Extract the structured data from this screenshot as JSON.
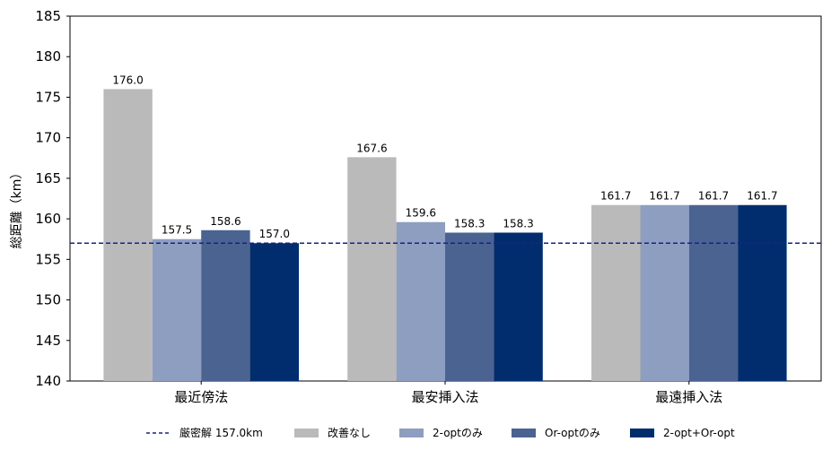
{
  "chart_data": {
    "type": "bar",
    "title": "",
    "xlabel": "",
    "ylabel": "総距離（km）",
    "ylim": [
      140,
      185
    ],
    "yticks": [
      140,
      145,
      150,
      155,
      160,
      165,
      170,
      175,
      180,
      185
    ],
    "grid": false,
    "legend_position": "bottom",
    "categories": [
      "最近傍法",
      "最安挿入法",
      "最遠挿入法"
    ],
    "series": [
      {
        "name": "改善なし",
        "color": "#bababa",
        "values": [
          176.0,
          167.6,
          161.7
        ]
      },
      {
        "name": "2-optのみ",
        "color": "#8d9ec0",
        "values": [
          157.5,
          159.6,
          161.7
        ]
      },
      {
        "name": "Or-optのみ",
        "color": "#4a6390",
        "values": [
          158.6,
          158.3,
          161.7
        ]
      },
      {
        "name": "2-opt+Or-opt",
        "color": "#012d6f",
        "values": [
          157.0,
          158.3,
          161.7
        ]
      }
    ],
    "reference_line": {
      "label": "厳密解 157.0km",
      "value": 157.0,
      "color": "#1a237e",
      "style": "dashed"
    }
  }
}
